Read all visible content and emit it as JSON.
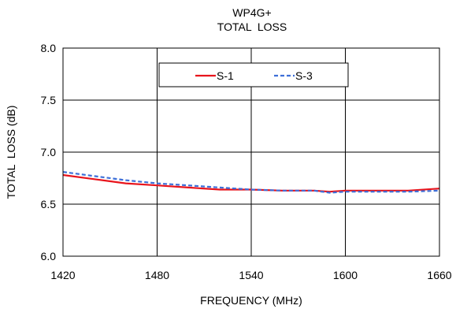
{
  "chart_data": {
    "type": "line",
    "title": "WP4G+",
    "subtitle": "TOTAL  LOSS",
    "xlabel": "FREQUENCY (MHz)",
    "ylabel": "TOTAL  LOSS (dB)",
    "xlim": [
      1420,
      1660
    ],
    "ylim": [
      6.0,
      8.0
    ],
    "x_ticks": [
      "1420",
      "1480",
      "1540",
      "1600",
      "1660"
    ],
    "y_ticks": [
      "6.0",
      "6.5",
      "7.0",
      "7.5",
      "8.0"
    ],
    "grid": true,
    "legend_position": "top-center",
    "series": [
      {
        "name": "S-1",
        "color": "#e8141c",
        "style": "solid",
        "x": [
          1420,
          1440,
          1460,
          1480,
          1500,
          1520,
          1540,
          1560,
          1580,
          1590,
          1600,
          1620,
          1640,
          1660
        ],
        "y": [
          6.78,
          6.74,
          6.7,
          6.68,
          6.66,
          6.64,
          6.64,
          6.63,
          6.63,
          6.62,
          6.63,
          6.63,
          6.63,
          6.65
        ]
      },
      {
        "name": "S-3",
        "color": "#3e6fd8",
        "style": "dashed",
        "x": [
          1420,
          1440,
          1460,
          1480,
          1500,
          1520,
          1540,
          1560,
          1580,
          1590,
          1600,
          1620,
          1640,
          1660
        ],
        "y": [
          6.81,
          6.77,
          6.73,
          6.7,
          6.68,
          6.66,
          6.64,
          6.63,
          6.63,
          6.61,
          6.62,
          6.62,
          6.62,
          6.63
        ]
      }
    ]
  }
}
